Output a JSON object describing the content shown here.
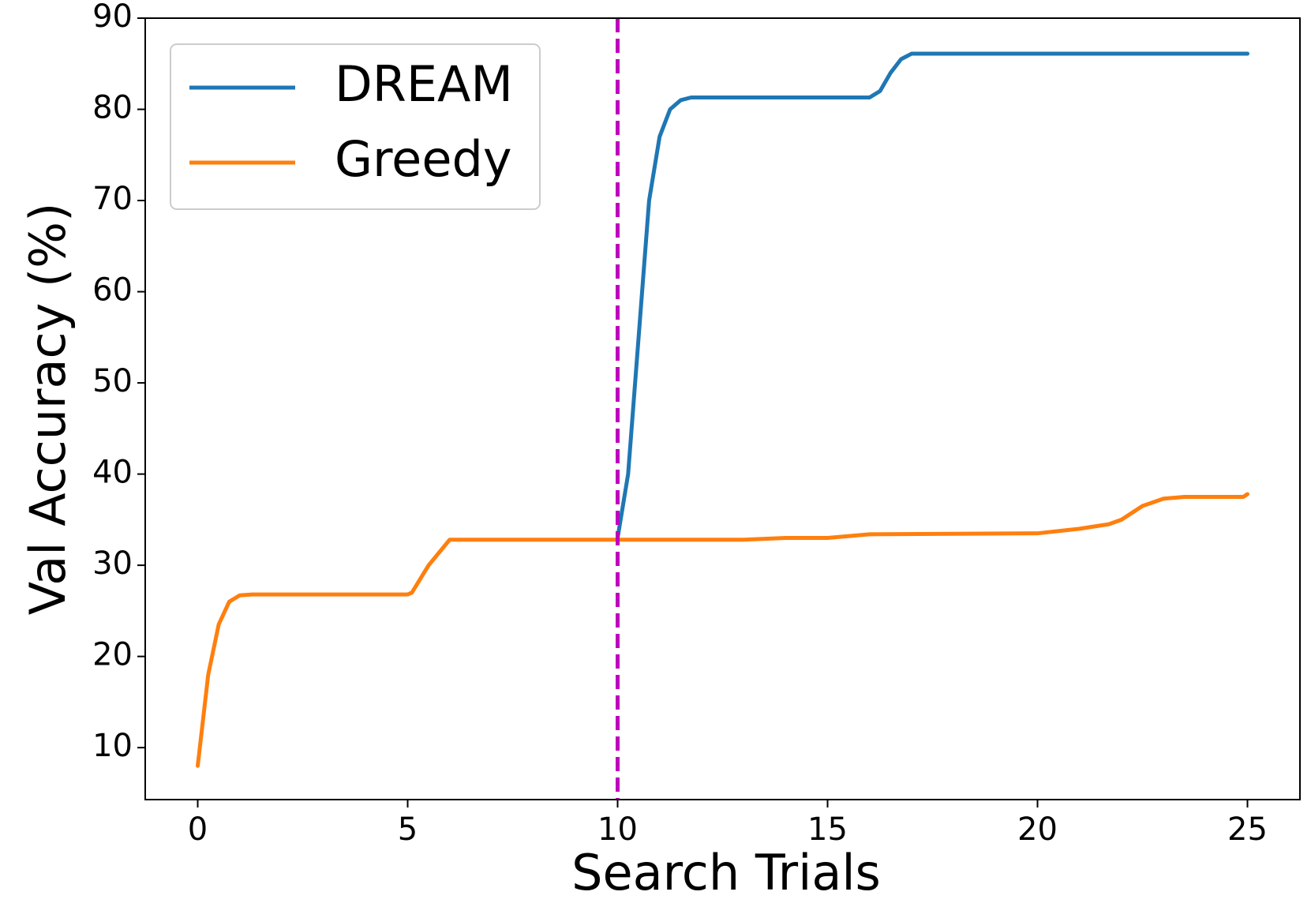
{
  "chart_data": {
    "type": "line",
    "xlabel": "Search Trials",
    "ylabel": "Val Accuracy (%)",
    "xlim": [
      -1.25,
      26.25
    ],
    "ylim": [
      4.3,
      90
    ],
    "xticks": [
      0,
      5,
      10,
      15,
      20,
      25
    ],
    "yticks": [
      10,
      20,
      30,
      40,
      50,
      60,
      70,
      80,
      90
    ],
    "legend": "upper left",
    "vline": {
      "x": 10,
      "color": "#bf00bf"
    },
    "series": [
      {
        "name": "DREAM",
        "color": "#1f77b4",
        "x": [
          10,
          10.25,
          10.5,
          10.75,
          11,
          11.25,
          11.5,
          11.75,
          16,
          16.25,
          16.5,
          16.75,
          17,
          25
        ],
        "values": [
          33,
          40,
          55,
          70,
          77,
          80,
          81,
          81.3,
          81.3,
          82,
          84,
          85.5,
          86.1,
          86.1
        ]
      },
      {
        "name": "Greedy",
        "color": "#ff7f0e",
        "x": [
          0,
          0.25,
          0.5,
          0.75,
          1,
          1.3,
          5,
          5.1,
          5.5,
          6,
          13,
          14,
          15,
          16,
          20,
          21,
          21.7,
          22,
          22.5,
          23,
          23.5,
          24.9,
          25
        ],
        "values": [
          8,
          18,
          23.5,
          26,
          26.7,
          26.8,
          26.8,
          27,
          30,
          32.8,
          32.8,
          33,
          33,
          33.4,
          33.5,
          34,
          34.5,
          35,
          36.5,
          37.3,
          37.5,
          37.5,
          37.8
        ]
      }
    ]
  }
}
